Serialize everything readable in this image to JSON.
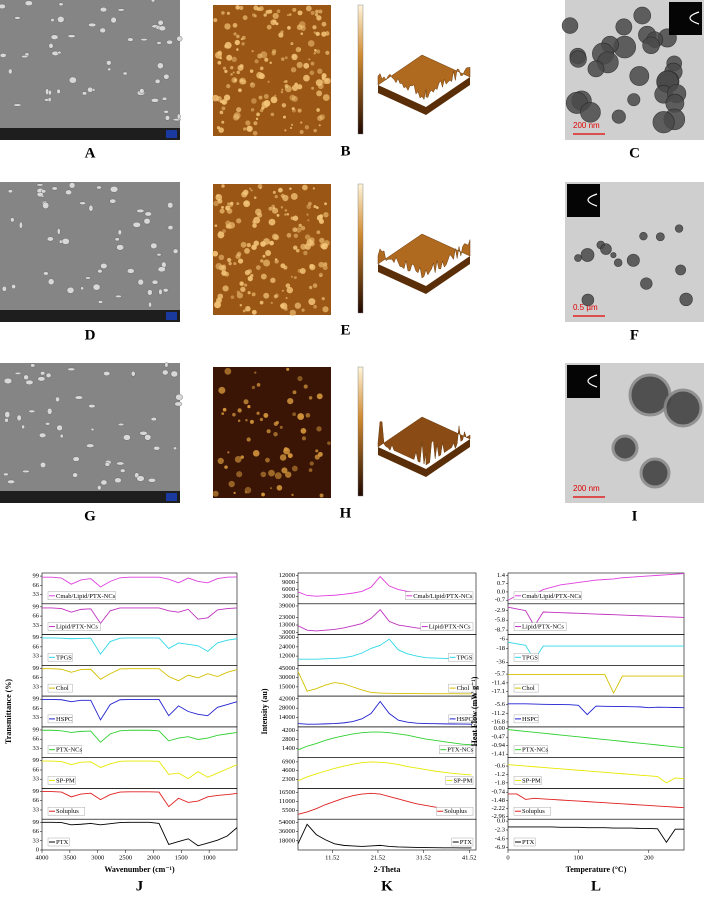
{
  "images": [
    {
      "label": "A"
    },
    {
      "label": "B"
    },
    {
      "label": "C",
      "scale_bar": "200 nm"
    },
    {
      "label": "D"
    },
    {
      "label": "E"
    },
    {
      "label": "F",
      "scale_bar": "0.5 µm"
    },
    {
      "label": "G"
    },
    {
      "label": "H"
    },
    {
      "label": "I",
      "scale_bar": "200 nm"
    }
  ],
  "chart_data": [
    {
      "type": "line",
      "label": "J",
      "x_label": "Wavenumber (cm⁻¹)",
      "y_label": "Transmittance (%)",
      "legend": "left",
      "x": [
        4000,
        3825,
        3650,
        3475,
        3300,
        3125,
        2950,
        2775,
        2600,
        2425,
        2250,
        2075,
        1900,
        1725,
        1550,
        1375,
        1200,
        1025,
        850,
        675,
        500
      ],
      "xlim": [
        4000,
        500
      ],
      "xticks": [
        4000,
        3500,
        3000,
        2500,
        2000,
        1500,
        1000
      ],
      "series": [
        {
          "name": "Cmab/Lipid/PTX-NCs",
          "color": "#e040e0",
          "ylim": [
            0,
            110
          ],
          "yticks": [
            33,
            66,
            99
          ],
          "values": [
            95,
            95,
            92,
            70,
            85,
            90,
            60,
            80,
            93,
            95,
            95,
            95,
            95,
            88,
            75,
            92,
            80,
            75,
            90,
            95,
            96
          ]
        },
        {
          "name": "Lipid/PTX-NCs",
          "color": "#c030c0",
          "ylim": [
            0,
            110
          ],
          "yticks": [
            33,
            66,
            99
          ],
          "values": [
            95,
            95,
            93,
            80,
            90,
            92,
            40,
            85,
            95,
            95,
            95,
            95,
            95,
            85,
            80,
            90,
            55,
            60,
            88,
            93,
            95
          ]
        },
        {
          "name": "TPGS",
          "color": "#30d8e8",
          "ylim": [
            0,
            110
          ],
          "yticks": [
            33,
            66,
            99
          ],
          "values": [
            98,
            98,
            97,
            95,
            96,
            97,
            40,
            85,
            97,
            98,
            98,
            98,
            98,
            60,
            80,
            75,
            70,
            50,
            80,
            90,
            95
          ]
        },
        {
          "name": "Chol",
          "color": "#d4c000",
          "ylim": [
            0,
            110
          ],
          "yticks": [
            33,
            66,
            99
          ],
          "values": [
            98,
            98,
            96,
            85,
            95,
            96,
            60,
            80,
            97,
            98,
            98,
            98,
            98,
            70,
            55,
            75,
            65,
            80,
            70,
            85,
            95
          ]
        },
        {
          "name": "HSPC",
          "color": "#2020d0",
          "ylim": [
            0,
            110
          ],
          "yticks": [
            33,
            66,
            99
          ],
          "values": [
            98,
            98,
            97,
            90,
            95,
            95,
            25,
            80,
            97,
            98,
            98,
            98,
            98,
            40,
            75,
            55,
            45,
            40,
            70,
            80,
            90
          ]
        },
        {
          "name": "PTX-NCs",
          "color": "#30d030",
          "ylim": [
            0,
            110
          ],
          "yticks": [
            33,
            66,
            99
          ],
          "values": [
            98,
            98,
            96,
            90,
            94,
            95,
            55,
            85,
            96,
            98,
            98,
            98,
            96,
            60,
            70,
            75,
            65,
            70,
            80,
            85,
            90
          ]
        },
        {
          "name": "SP-PM",
          "color": "#e8e800",
          "ylim": [
            0,
            110
          ],
          "yticks": [
            33,
            66,
            99
          ],
          "values": [
            98,
            98,
            96,
            85,
            94,
            95,
            75,
            88,
            97,
            98,
            98,
            98,
            97,
            50,
            55,
            35,
            60,
            40,
            55,
            70,
            85
          ]
        },
        {
          "name": "Soluplus",
          "color": "#e02020",
          "ylim": [
            0,
            110
          ],
          "yticks": [
            33,
            66,
            99
          ],
          "values": [
            99,
            99,
            97,
            80,
            90,
            93,
            70,
            88,
            97,
            98,
            98,
            98,
            97,
            45,
            75,
            60,
            65,
            80,
            85,
            88,
            92
          ]
        },
        {
          "name": "PTX",
          "color": "#000000",
          "ylim": [
            0,
            110
          ],
          "yticks": [
            0,
            33,
            66,
            99
          ],
          "values": [
            99,
            99,
            98,
            90,
            92,
            95,
            90,
            94,
            98,
            99,
            99,
            99,
            95,
            20,
            30,
            40,
            15,
            25,
            35,
            50,
            80
          ]
        }
      ]
    },
    {
      "type": "line",
      "label": "K",
      "x_label": "2-Theta",
      "y_label": "Intensity (au)",
      "legend": "right",
      "x": [
        4,
        6,
        8,
        10,
        12,
        14,
        16,
        18,
        20,
        22,
        24,
        26,
        28,
        30,
        32,
        34,
        36,
        38,
        40,
        42
      ],
      "xlim": [
        4,
        43
      ],
      "xticks": [
        11.52,
        21.52,
        31.52,
        41.52
      ],
      "series": [
        {
          "name": "Cmab/Lipid/PTX-NCs",
          "color": "#e040e0",
          "ylim": [
            0,
            13000
          ],
          "yticks": [
            3000,
            6000,
            9000,
            12000
          ],
          "values": [
            5000,
            3500,
            3200,
            3400,
            3600,
            4000,
            4500,
            5200,
            7000,
            11500,
            7500,
            6000,
            5200,
            4800,
            4500,
            4300,
            4100,
            4000,
            3900,
            3800
          ]
        },
        {
          "name": "Lipid/PTX-NCs",
          "color": "#c030c0",
          "ylim": [
            0,
            42000
          ],
          "yticks": [
            3000,
            13000,
            23000,
            39000
          ],
          "values": [
            12000,
            6000,
            5000,
            6000,
            7000,
            9000,
            12000,
            15000,
            22000,
            34000,
            18000,
            13000,
            11000,
            9000,
            8000,
            7500,
            7000,
            6500,
            6200,
            6000
          ]
        },
        {
          "name": "TPGS",
          "color": "#30d8e8",
          "ylim": [
            0,
            40000
          ],
          "yticks": [
            12000,
            24000,
            36000
          ],
          "values": [
            8000,
            8000,
            8000,
            8500,
            9000,
            10000,
            12000,
            16000,
            22000,
            26000,
            34000,
            20000,
            15000,
            12000,
            10000,
            9500,
            9000,
            9000,
            8800,
            8500
          ]
        },
        {
          "name": "Chol",
          "color": "#d4c000",
          "ylim": [
            0,
            50000
          ],
          "yticks": [
            15000,
            30000,
            45000
          ],
          "values": [
            40000,
            8000,
            12000,
            18000,
            22000,
            20000,
            15000,
            10000,
            6000,
            5000,
            4500,
            4300,
            4200,
            4100,
            4000,
            4000,
            3900,
            3900,
            3800,
            3800
          ]
        },
        {
          "name": "HSPC",
          "color": "#2020d0",
          "ylim": [
            0,
            46000
          ],
          "yticks": [
            14000,
            28000,
            42000
          ],
          "values": [
            5000,
            4000,
            4000,
            4500,
            5000,
            6000,
            8000,
            12000,
            20000,
            38000,
            20000,
            10000,
            7000,
            5500,
            5000,
            4800,
            4500,
            4300,
            4200,
            4000
          ]
        },
        {
          "name": "PTX-NCs",
          "color": "#30d030",
          "ylim": [
            0,
            4800
          ],
          "yticks": [
            1400,
            2800,
            4200
          ],
          "values": [
            1200,
            1800,
            2200,
            2700,
            3100,
            3400,
            3700,
            3900,
            4000,
            4000,
            3900,
            3700,
            3500,
            3200,
            2900,
            2700,
            2500,
            2300,
            2100,
            2000
          ]
        },
        {
          "name": "SP-PM",
          "color": "#e8e800",
          "ylim": [
            0,
            8000
          ],
          "yticks": [
            2300,
            4600,
            6900
          ],
          "values": [
            2000,
            3000,
            3800,
            4500,
            5200,
            5800,
            6300,
            6700,
            6900,
            6800,
            6600,
            6200,
            5700,
            5300,
            4900,
            4500,
            4200,
            3900,
            3700,
            3500
          ]
        },
        {
          "name": "Soluplus",
          "color": "#e02020",
          "ylim": [
            0,
            19000
          ],
          "yticks": [
            5500,
            11000,
            16500
          ],
          "values": [
            3000,
            4500,
            6500,
            9000,
            11000,
            13000,
            14500,
            15500,
            16000,
            15500,
            14000,
            12500,
            11000,
            9500,
            8500,
            7500,
            6800,
            6200,
            5800,
            5500
          ]
        },
        {
          "name": "PTX",
          "color": "#000000",
          "ylim": [
            0,
            60000
          ],
          "yticks": [
            18000,
            36000,
            54000
          ],
          "values": [
            12000,
            50000,
            30000,
            20000,
            12000,
            9000,
            8000,
            7000,
            8000,
            9000,
            7000,
            6000,
            5500,
            5000,
            4800,
            4500,
            4300,
            4200,
            4100,
            4000
          ]
        }
      ]
    },
    {
      "type": "line",
      "label": "L",
      "x_label": "Temperature (°C)",
      "y_label": "Heat Flow (mW g⁻¹)",
      "legend": "left",
      "x": [
        0,
        12.5,
        25,
        37.5,
        50,
        62.5,
        75,
        87.5,
        100,
        112.5,
        125,
        137.5,
        150,
        162.5,
        175,
        187.5,
        200,
        212.5,
        225,
        237.5,
        250
      ],
      "xlim": [
        0,
        250
      ],
      "xticks": [
        0,
        100,
        200
      ],
      "series": [
        {
          "name": "Cmab/Lipid/PTX-NCs",
          "color": "#e040e0",
          "ylim": [
            -1,
            1.6
          ],
          "yticks": [
            -0.7,
            {
              "value": 0,
              "label": "0.0"
            },
            0.7,
            1.4
          ],
          "values": [
            -0.7,
            -0.3,
            0.0,
            -0.2,
            0.2,
            0.4,
            0.6,
            0.7,
            0.8,
            0.9,
            1.0,
            1.05,
            1.1,
            1.2,
            1.25,
            1.3,
            1.35,
            1.4,
            1.45,
            1.5,
            1.55
          ]
        },
        {
          "name": "Lipid/PTX-NCs",
          "color": "#c030c0",
          "ylim": [
            -10,
            -1
          ],
          "yticks": [
            -8.7,
            -5.8,
            -2.9
          ],
          "values": [
            -2,
            -2.5,
            -3.0,
            -7.5,
            -3.4,
            -3.5,
            -3.6,
            -3.7,
            -3.8,
            -3.9,
            -4.0,
            -4.1,
            -4.2,
            -4.3,
            -4.4,
            -4.5,
            -4.6,
            -4.7,
            -4.8,
            -4.9,
            -5.0
          ]
        },
        {
          "name": "TPGS",
          "color": "#30d8e8",
          "ylim": [
            -40,
            0
          ],
          "yticks": [
            -36,
            -18,
            -6
          ],
          "values": [
            -10,
            -12,
            -14,
            -33,
            -15,
            -15,
            -15,
            -15,
            -15,
            -15,
            -15,
            -15,
            -15,
            -15,
            -15,
            -15,
            -15,
            -15,
            -15,
            -15,
            -15
          ]
        },
        {
          "name": "Chol",
          "color": "#d4c000",
          "ylim": [
            -20,
            0
          ],
          "yticks": [
            -17.1,
            -11.4,
            -5.7
          ],
          "values": [
            -6,
            -6,
            -6,
            -6,
            -6,
            -6,
            -6,
            -6,
            -6,
            -6,
            -6,
            -6,
            -18,
            -7,
            -7,
            -7,
            -7,
            -7,
            -7,
            -7,
            -7
          ]
        },
        {
          "name": "HSPC",
          "color": "#2020d0",
          "ylim": [
            -20,
            0
          ],
          "yticks": [
            -16.8,
            -11.2,
            -5.6
          ],
          "values": [
            -5,
            -5,
            -5,
            -5.2,
            -5.3,
            -5.4,
            -5.5,
            -5.6,
            -6,
            -12,
            -6.5,
            -6.6,
            -6.7,
            -6.8,
            -6.9,
            -7,
            -7.5,
            -7.2,
            -7.3,
            -7.4,
            -7.5
          ]
        },
        {
          "name": "PTX-NCs",
          "color": "#30d030",
          "ylim": [
            -1.6,
            0.1
          ],
          "yticks": [
            -1.41,
            -0.94,
            -0.47,
            {
              "value": 0,
              "label": "0.00"
            }
          ],
          "values": [
            -0.05,
            -0.1,
            -0.15,
            -0.2,
            -0.25,
            -0.3,
            -0.35,
            -0.4,
            -0.45,
            -0.5,
            -0.55,
            -0.6,
            -0.65,
            -0.7,
            -0.75,
            -0.8,
            -0.85,
            -0.9,
            -0.95,
            -1.0,
            -1.05
          ]
        },
        {
          "name": "SP-PM",
          "color": "#e8e800",
          "ylim": [
            -2.2,
            0
          ],
          "yticks": [
            -1.8,
            -1.2,
            -0.6
          ],
          "values": [
            -0.5,
            -0.55,
            -0.6,
            -0.65,
            -0.7,
            -0.75,
            -0.8,
            -0.85,
            -0.9,
            -0.95,
            -1.0,
            -1.05,
            -1.1,
            -1.15,
            -1.2,
            -1.25,
            -1.3,
            -1.35,
            -1.8,
            -1.45,
            -1.5
          ]
        },
        {
          "name": "Soluplus",
          "color": "#e02020",
          "ylim": [
            -3.2,
            -0.4
          ],
          "yticks": [
            -2.96,
            -2.22,
            -1.48,
            -0.74
          ],
          "values": [
            -0.9,
            -0.9,
            -1.4,
            -1.3,
            -1.35,
            -1.4,
            -1.45,
            -1.5,
            -1.55,
            -1.6,
            -1.65,
            -1.7,
            -1.75,
            -1.8,
            -1.85,
            -1.9,
            -1.95,
            -2.0,
            -2.05,
            -2.1,
            -2.15
          ]
        },
        {
          "name": "PTX",
          "color": "#000000",
          "ylim": [
            -7.5,
            0.5
          ],
          "yticks": [
            -6.9,
            -4.6,
            -2.3,
            {
              "value": 0,
              "label": "0.0"
            }
          ],
          "values": [
            -1.5,
            -1.5,
            -1.5,
            -1.5,
            -1.5,
            -1.5,
            -1.6,
            -1.6,
            -1.6,
            -1.7,
            -1.7,
            -1.7,
            -1.8,
            -1.8,
            -1.8,
            -1.9,
            -1.9,
            -2.0,
            -5.5,
            -2.1,
            -2.1
          ]
        }
      ]
    }
  ]
}
